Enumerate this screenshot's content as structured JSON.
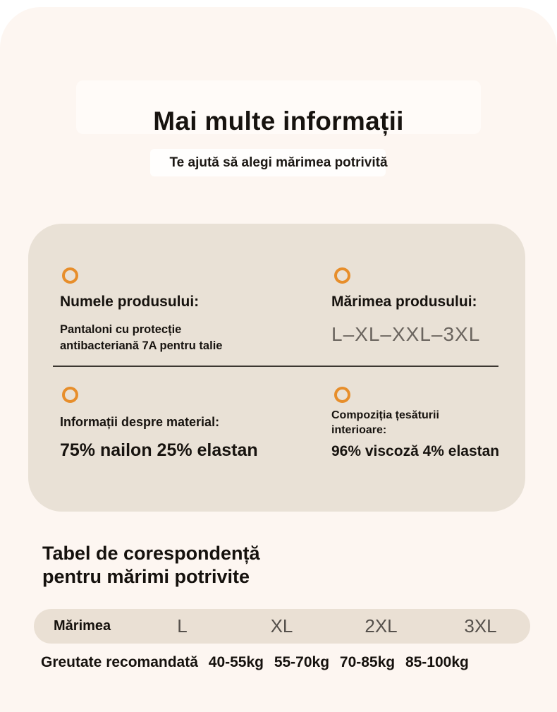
{
  "page": {
    "title": "Mai multe informații",
    "subtitle": "Te ajută să alegi mărimea potrivită"
  },
  "colors": {
    "page_background": "#ffffff",
    "panel_background": "#fdf6f1",
    "card_background": "#e9e1d6",
    "pill_background": "#eae0d4",
    "accent_orange": "#e78e2b",
    "text_dark": "#17130f",
    "text_gray": "#6b655f",
    "divider": "#3c3731"
  },
  "info_card": {
    "sections": [
      {
        "icon": "ring-icon",
        "label": "Numele produsului:",
        "value": "Pantaloni cu protecție antibacteriană 7A pentru talie"
      },
      {
        "icon": "ring-icon",
        "label": "Mărimea produsului:",
        "value": "L–XL–XXL–3XL"
      },
      {
        "icon": "ring-icon",
        "label": "Informații despre material:",
        "value": "75% nailon 25% elastan"
      },
      {
        "icon": "ring-icon",
        "label": "Compoziția țesăturii interioare:",
        "value": "96% viscoză 4% elastan"
      }
    ]
  },
  "size_table": {
    "heading": "Tabel de corespondență\npentru mărimi potrivite",
    "header_label": "Mărimea",
    "sizes": [
      "L",
      "XL",
      "2XL",
      "3XL"
    ],
    "weight_label": "Greutate recomandată",
    "weights": [
      "40-55kg",
      "55-70kg",
      "70-85kg",
      "85-100kg"
    ]
  }
}
